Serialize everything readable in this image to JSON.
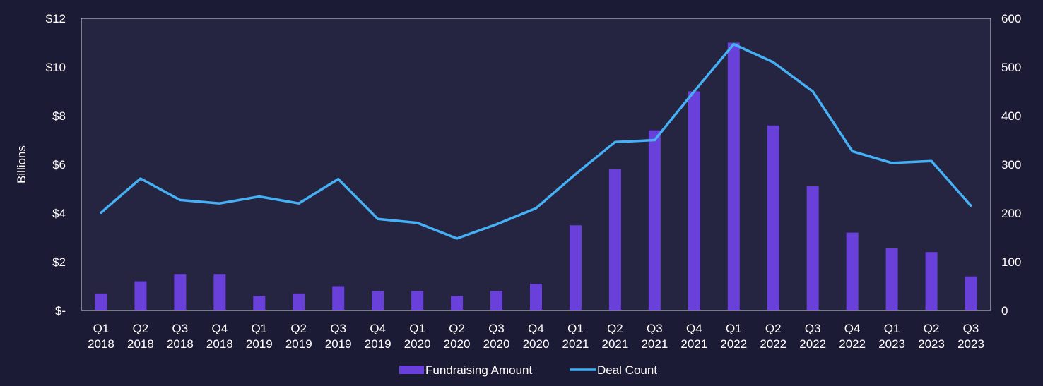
{
  "colors": {
    "page_background": "#1b1b35",
    "plot_background": "#252541",
    "bar": "#6a40db",
    "line": "#45b0f5",
    "text": "#ffffff",
    "plot_border": "#d8d8e6"
  },
  "chart_data": {
    "type": "bar",
    "categories": [
      "Q1 2018",
      "Q2 2018",
      "Q3 2018",
      "Q4 2018",
      "Q1 2019",
      "Q2 2019",
      "Q3 2019",
      "Q4 2019",
      "Q1 2020",
      "Q2 2020",
      "Q3 2020",
      "Q4 2020",
      "Q1 2021",
      "Q2 2021",
      "Q3 2021",
      "Q4 2021",
      "Q1 2022",
      "Q2 2022",
      "Q3 2022",
      "Q4 2022",
      "Q1 2023",
      "Q2 2023",
      "Q3 2023"
    ],
    "series": [
      {
        "name": "Fundraising Amount",
        "type": "bar",
        "axis": "left",
        "values": [
          0.7,
          1.2,
          1.5,
          1.5,
          0.6,
          0.7,
          1.0,
          0.8,
          0.8,
          0.6,
          0.8,
          1.1,
          3.5,
          5.8,
          7.4,
          9.0,
          11.0,
          7.6,
          5.1,
          3.2,
          2.55,
          2.4,
          1.4
        ]
      },
      {
        "name": "Deal Count",
        "type": "line",
        "axis": "right",
        "values": [
          201,
          271,
          227,
          220,
          234,
          220,
          270,
          188,
          180,
          148,
          177,
          210,
          280,
          346,
          350,
          450,
          547,
          510,
          450,
          327,
          303,
          307,
          215
        ]
      }
    ],
    "title": "",
    "ylabel": "Billions",
    "y2label": "",
    "ylim": [
      0,
      12
    ],
    "y2lim": [
      0,
      600
    ],
    "yticks": [
      "$-",
      "$2",
      "$4",
      "$6",
      "$8",
      "$10",
      "$12"
    ],
    "y2ticks": [
      "0",
      "100",
      "200",
      "300",
      "400",
      "500",
      "600"
    ],
    "grid": false,
    "legend_position": "bottom"
  }
}
